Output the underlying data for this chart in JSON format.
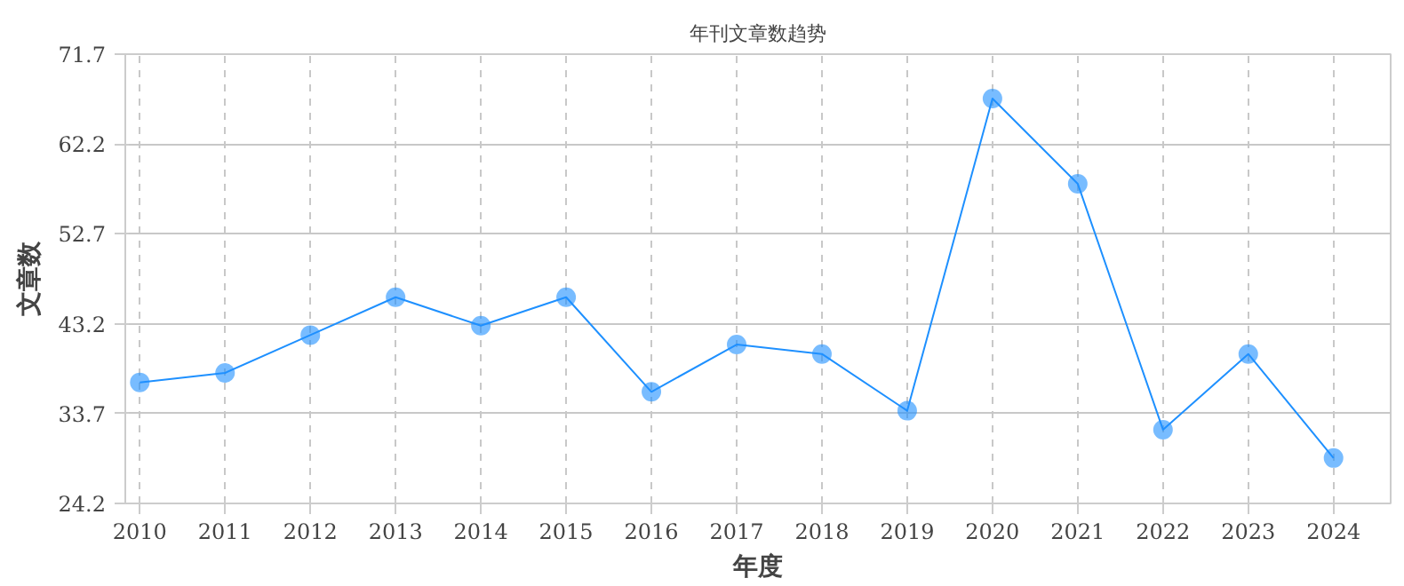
{
  "chart_data": {
    "type": "line",
    "title": "年刊文章数趋势",
    "xlabel": "年度",
    "ylabel": "文章数",
    "x": [
      2010,
      2011,
      2012,
      2013,
      2014,
      2015,
      2016,
      2017,
      2018,
      2019,
      2020,
      2021,
      2022,
      2023,
      2024
    ],
    "series": [
      {
        "color": "#1e90ff",
        "values": [
          37,
          38,
          42,
          46,
          43,
          46,
          36,
          41,
          40,
          34,
          67,
          58,
          32,
          40,
          29
        ]
      }
    ],
    "xlim": [
      2009.83,
      2024.67
    ],
    "xticks": [
      2010,
      2011,
      2012,
      2013,
      2014,
      2015,
      2016,
      2017,
      2018,
      2019,
      2020,
      2021,
      2022,
      2023,
      2024
    ],
    "ylim": [
      24.2,
      71.7
    ],
    "yticks": [
      24.2,
      33.7,
      43.2,
      52.7,
      62.2,
      71.7
    ],
    "grid": true,
    "marker": "circle",
    "line_style": "solid"
  }
}
